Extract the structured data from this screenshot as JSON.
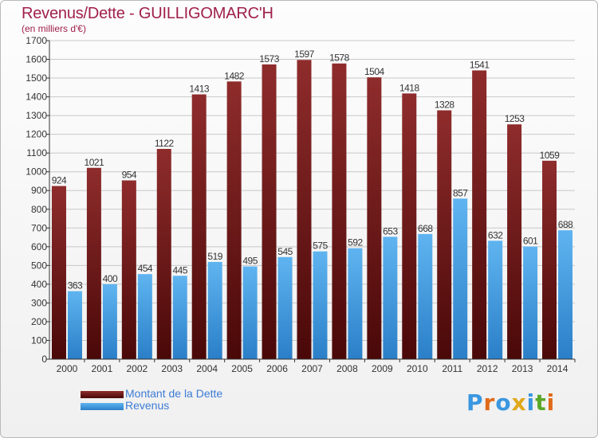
{
  "header": {
    "title": "Revenus/Dette - GUILLIGOMARC'H",
    "subtitle": "(en milliers d'€)"
  },
  "legend": [
    {
      "label": "Montant de la Dette",
      "color": "#7a1a1a"
    },
    {
      "label": "Revenus",
      "color": "#3a97e0"
    }
  ],
  "logo": {
    "text": "Proxiti"
  },
  "colors": {
    "debt_light": "#8f2c2c",
    "debt_dark": "#4a0808",
    "revenue_light": "#5fb4f0",
    "revenue_dark": "#2a7fc8",
    "axis": "#333333",
    "grid": "#c8c8c8",
    "label": "#333333"
  },
  "chart_data": {
    "type": "bar",
    "categories": [
      "2000",
      "2001",
      "2002",
      "2003",
      "2004",
      "2005",
      "2006",
      "2007",
      "2008",
      "2009",
      "2010",
      "2011",
      "2012",
      "2013",
      "2014"
    ],
    "series": [
      {
        "name": "Montant de la Dette",
        "values": [
          924,
          1021,
          954,
          1122,
          1413,
          1482,
          1573,
          1597,
          1578,
          1504,
          1418,
          1328,
          1541,
          1253,
          1059
        ]
      },
      {
        "name": "Revenus",
        "values": [
          363,
          400,
          454,
          445,
          519,
          495,
          545,
          575,
          592,
          653,
          668,
          857,
          632,
          601,
          688
        ]
      }
    ],
    "ylim": [
      0,
      1700
    ],
    "yticks": [
      0,
      100,
      200,
      300,
      400,
      500,
      600,
      700,
      800,
      900,
      1000,
      1100,
      1200,
      1300,
      1400,
      1500,
      1600,
      1700
    ],
    "grid": true,
    "legend_position": "bottom-left"
  }
}
